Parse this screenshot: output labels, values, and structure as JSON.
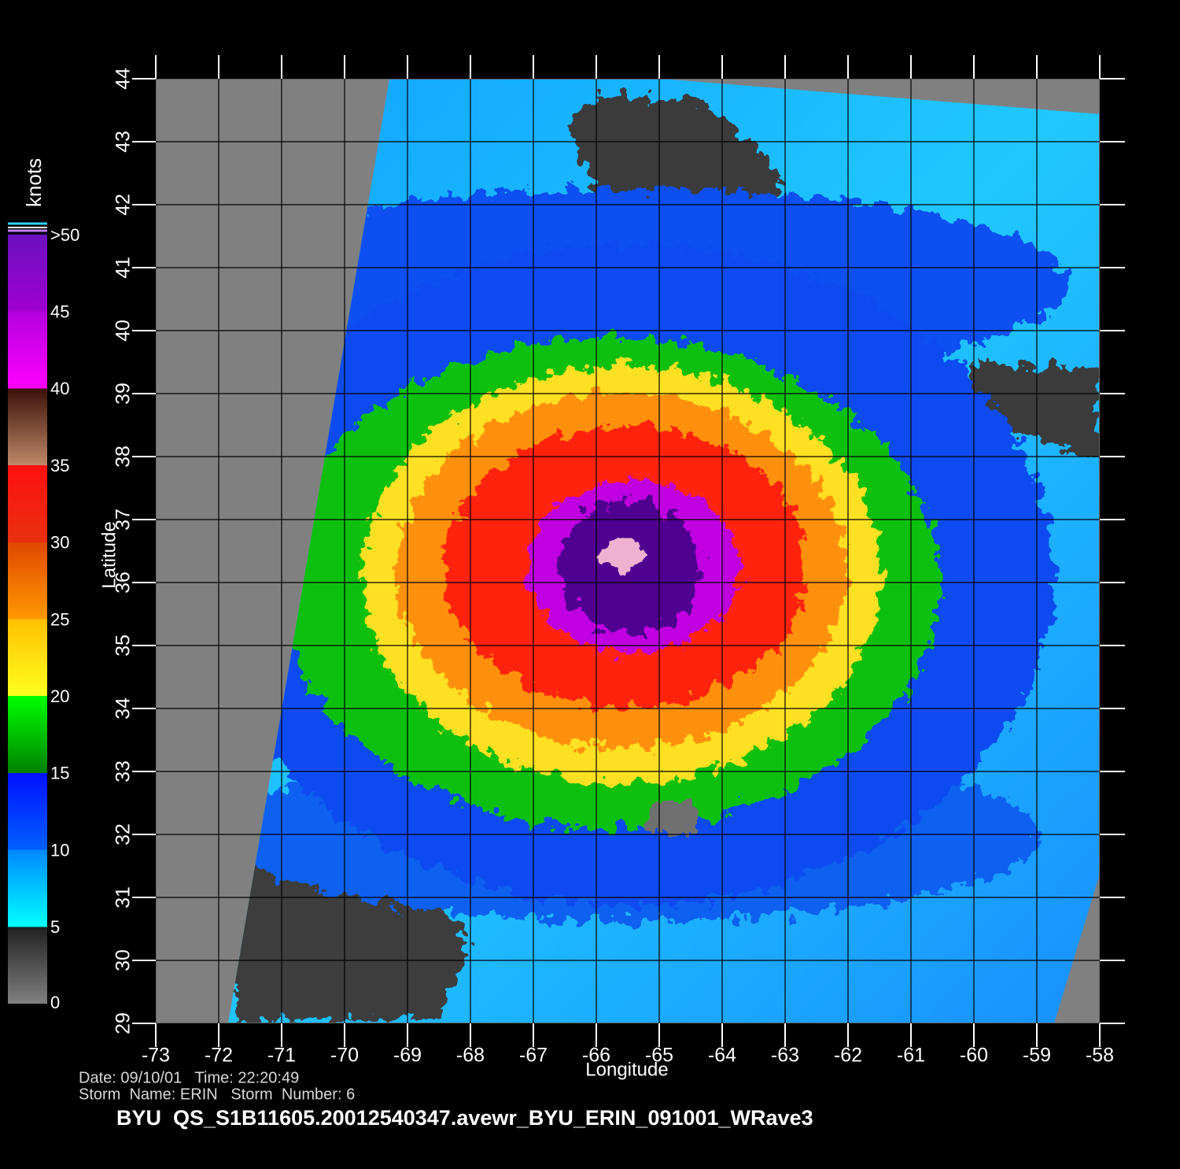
{
  "chart_data": {
    "type": "map",
    "title": "BYU  QS_S1B11605.20012540347.avewr_BYU_ERIN_091001_WRave3",
    "annotations": [
      "Date: 09/10/01   Time: 22:20:49",
      "Storm  Name: ERIN   Storm  Number: 6"
    ],
    "xlabel": "Longitude",
    "ylabel": "Latitude",
    "xlim": [
      -73,
      -58
    ],
    "ylim": [
      29,
      44
    ],
    "xticks": [
      -73,
      -72,
      -71,
      -70,
      -69,
      -68,
      -67,
      -66,
      -65,
      -64,
      -63,
      -62,
      -61,
      -60,
      -59,
      -58
    ],
    "yticks": [
      29,
      30,
      31,
      32,
      33,
      34,
      35,
      36,
      37,
      38,
      39,
      40,
      41,
      42,
      43,
      44
    ],
    "grid": true,
    "colorbar": {
      "label": "knots",
      "lim": [
        0,
        50
      ],
      "ticks": [
        0,
        5,
        10,
        15,
        20,
        25,
        30,
        35,
        40,
        45,
        {
          "value": 50,
          "label": ">50"
        }
      ]
    }
  }
}
